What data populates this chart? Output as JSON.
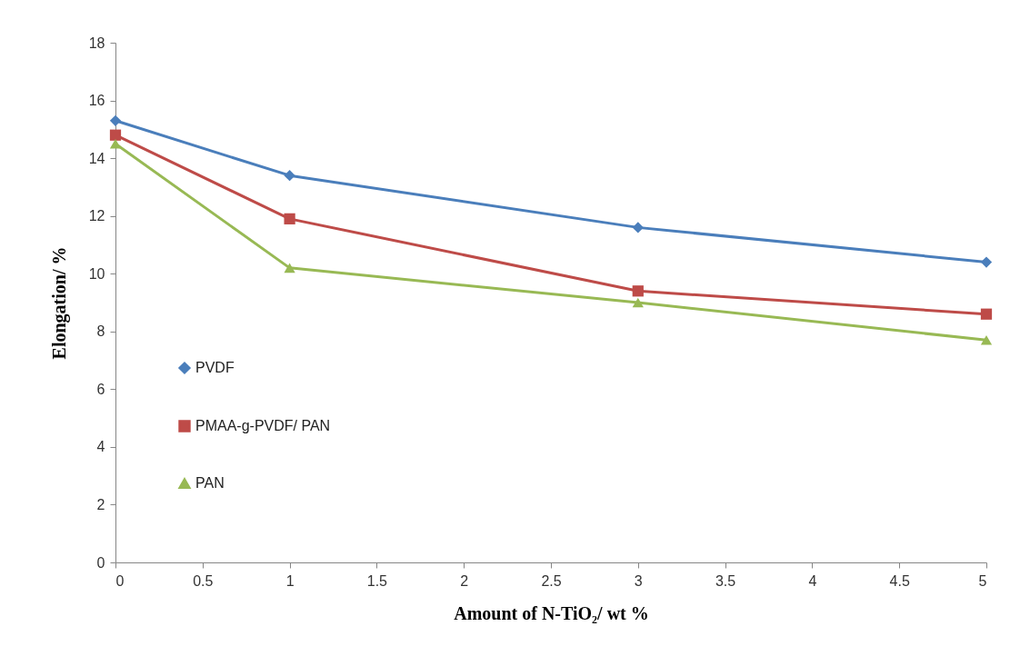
{
  "chart_data": {
    "type": "line",
    "xlabel": "Amount  of N-TiO₂/ wt %",
    "ylabel": "Elongation/ %",
    "x": [
      0,
      1,
      3,
      5
    ],
    "series": [
      {
        "name": "PVDF",
        "color": "#4a7ebb",
        "marker": "diamond",
        "values": [
          15.3,
          13.4,
          11.6,
          10.4
        ]
      },
      {
        "name": "PMAA-g-PVDF/ PAN",
        "color": "#be4b48",
        "marker": "square",
        "values": [
          14.8,
          11.9,
          9.4,
          8.6
        ]
      },
      {
        "name": "PAN",
        "color": "#98b954",
        "marker": "triangle",
        "values": [
          14.5,
          10.2,
          9.0,
          7.7
        ]
      }
    ],
    "xlim": [
      0,
      5
    ],
    "xticks": [
      0,
      0.5,
      1,
      1.5,
      2,
      2.5,
      3,
      3.5,
      4,
      4.5,
      5
    ],
    "ylim": [
      0,
      18
    ],
    "yticks": [
      0,
      2,
      4,
      6,
      8,
      10,
      12,
      14,
      16,
      18
    ],
    "legend": "left",
    "line_style": "solid"
  }
}
